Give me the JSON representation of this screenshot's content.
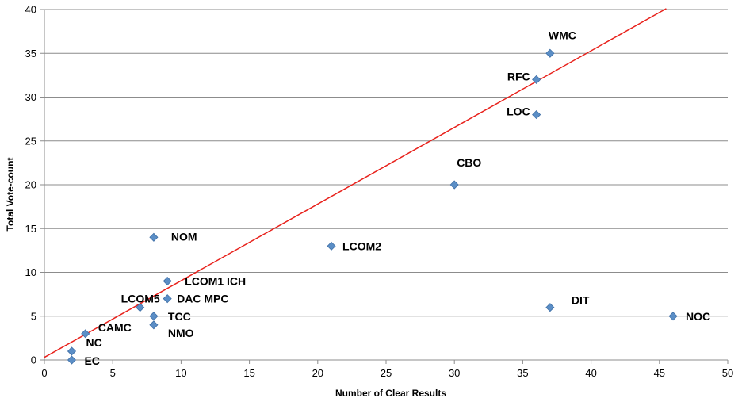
{
  "chart_data": {
    "type": "scatter",
    "xlabel": "Number of Clear Results",
    "ylabel": "Total Vote-count",
    "xlim": [
      0,
      50
    ],
    "ylim": [
      0,
      40
    ],
    "xticks": [
      0,
      5,
      10,
      15,
      20,
      25,
      30,
      35,
      40,
      45,
      50
    ],
    "yticks": [
      0,
      5,
      10,
      15,
      20,
      25,
      30,
      35,
      40
    ],
    "grid": "horizontal",
    "legend": "none",
    "points": [
      {
        "label": "WMC",
        "x": 37,
        "y": 35
      },
      {
        "label": "RFC",
        "x": 36,
        "y": 32
      },
      {
        "label": "LOC",
        "x": 36,
        "y": 28
      },
      {
        "label": "CBO",
        "x": 30,
        "y": 20
      },
      {
        "label": "NOM",
        "x": 8,
        "y": 14
      },
      {
        "label": "LCOM2",
        "x": 21,
        "y": 13
      },
      {
        "label": "LCOM1 ICH",
        "x": 9,
        "y": 9
      },
      {
        "label": "DAC  MPC",
        "x": 9,
        "y": 7
      },
      {
        "label": "LCOM5",
        "x": 7,
        "y": 6
      },
      {
        "label": "DIT",
        "x": 37,
        "y": 6
      },
      {
        "label": "TCC",
        "x": 8,
        "y": 5
      },
      {
        "label": "NOC",
        "x": 46,
        "y": 5
      },
      {
        "label": "NMO",
        "x": 8,
        "y": 4
      },
      {
        "label": "CAMC",
        "x": 3,
        "y": 3
      },
      {
        "label": "NC",
        "x": 2,
        "y": 1
      },
      {
        "label": "EC",
        "x": 2,
        "y": 0
      }
    ],
    "trendline": {
      "x": [
        0,
        45.5
      ],
      "y": [
        0.3,
        40.1
      ]
    },
    "colors": {
      "marker": "#5b8ec6",
      "marker_edge": "#3f6fa6",
      "trendline": "#e8211b",
      "grid": "#8c8c8c",
      "axis": "#8c8c8c"
    }
  }
}
